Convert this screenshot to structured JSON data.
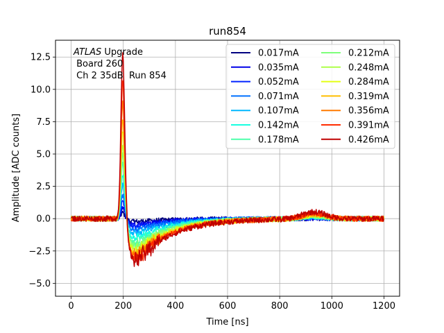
{
  "chart_data": {
    "type": "line",
    "title": "run854",
    "xlabel": "Time [ns]",
    "ylabel": "Amplitude [ADC counts]",
    "xlim": [
      -60,
      1260
    ],
    "ylim": [
      -6.0,
      13.8
    ],
    "xticks": [
      0,
      200,
      400,
      600,
      800,
      1000,
      1200
    ],
    "yticks": [
      -5.0,
      -2.5,
      0.0,
      2.5,
      5.0,
      7.5,
      10.0,
      12.5
    ],
    "xtick_labels": [
      "0",
      "200",
      "400",
      "600",
      "800",
      "1000",
      "1200"
    ],
    "ytick_labels": [
      "−5.0",
      "−2.5",
      "0.0",
      "2.5",
      "5.0",
      "7.5",
      "10.0",
      "12.5"
    ],
    "grid": true,
    "legend_position": "top-right",
    "legend_columns": 2,
    "annotation": {
      "experiment": "ATLAS",
      "line1_rest": " Upgrade",
      "line2": " Board 260",
      "line3": " Ch 2 35dB  Run 854"
    },
    "x_range": [
      0,
      1200
    ],
    "series": [
      {
        "name": "0.017mA",
        "color": "#00007f",
        "peak": 0.45,
        "undershoot": -0.25
      },
      {
        "name": "0.035mA",
        "color": "#0000e8",
        "peak": 0.9,
        "undershoot": -0.5
      },
      {
        "name": "0.052mA",
        "color": "#0022ff",
        "peak": 1.3,
        "undershoot": -0.7
      },
      {
        "name": "0.071mA",
        "color": "#0070ff",
        "peak": 1.8,
        "undershoot": -0.95
      },
      {
        "name": "0.107mA",
        "color": "#00b8ff",
        "peak": 2.6,
        "undershoot": -1.3
      },
      {
        "name": "0.142mA",
        "color": "#17ffe0",
        "peak": 3.4,
        "undershoot": -1.7
      },
      {
        "name": "0.178mA",
        "color": "#4dffaa",
        "peak": 4.2,
        "undershoot": -2.05
      },
      {
        "name": "0.212mA",
        "color": "#7dff7a",
        "peak": 5.0,
        "undershoot": -2.35
      },
      {
        "name": "0.248mA",
        "color": "#adff49",
        "peak": 5.8,
        "undershoot": -2.6
      },
      {
        "name": "0.284mA",
        "color": "#e4ff13",
        "peak": 6.8,
        "undershoot": -2.85
      },
      {
        "name": "0.319mA",
        "color": "#ffbe00",
        "peak": 7.8,
        "undershoot": -3.05
      },
      {
        "name": "0.356mA",
        "color": "#ff7a00",
        "peak": 9.0,
        "undershoot": -3.25
      },
      {
        "name": "0.391mA",
        "color": "#ff2c00",
        "peak": 10.5,
        "undershoot": -3.4
      },
      {
        "name": "0.426mA",
        "color": "#bf0000",
        "peak": 12.9,
        "undershoot": -3.6
      }
    ]
  }
}
